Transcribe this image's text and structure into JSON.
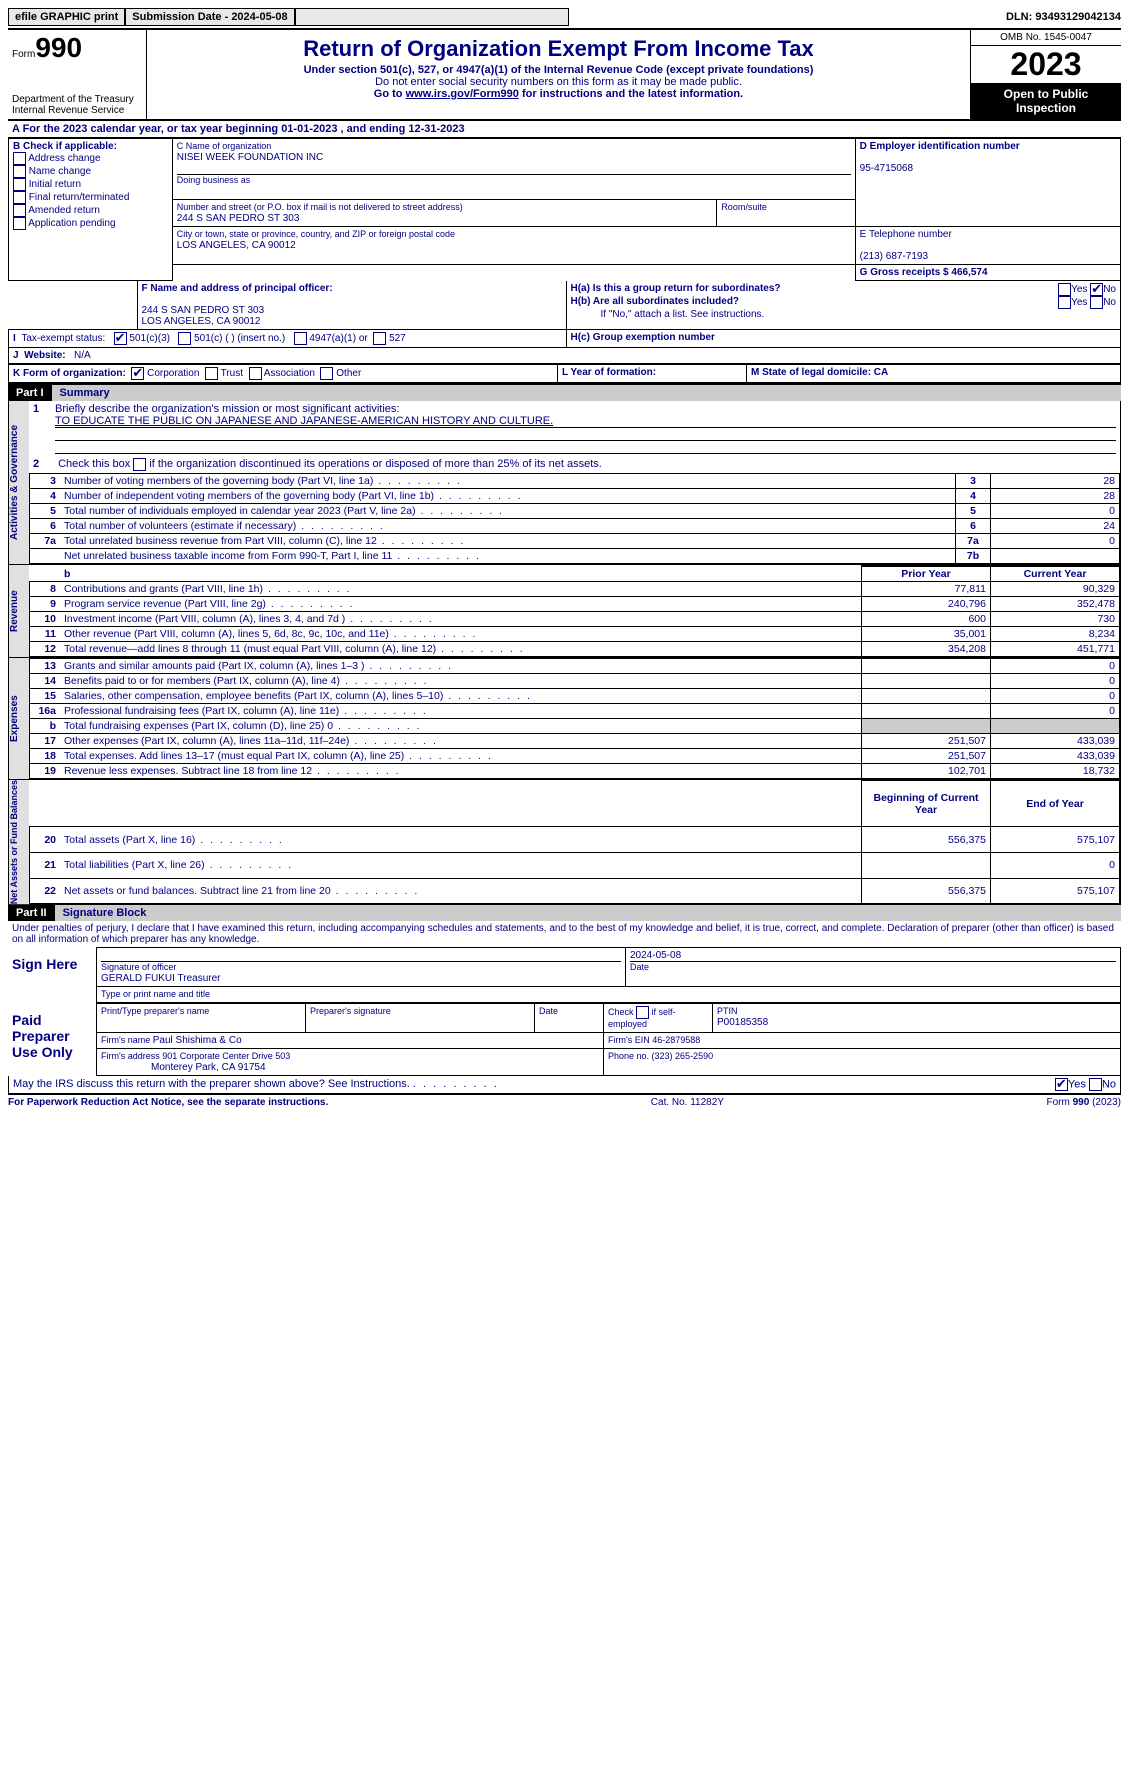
{
  "topbar": {
    "efile_btn": "efile GRAPHIC print",
    "submission_label": "Submission Date - 2024-05-08",
    "dln_label": "DLN: 93493129042134"
  },
  "header": {
    "form_label_small": "Form",
    "form_label_big": "990",
    "dept": "Department of the Treasury Internal Revenue Service",
    "title": "Return of Organization Exempt From Income Tax",
    "sub1": "Under section 501(c), 527, or 4947(a)(1) of the Internal Revenue Code (except private foundations)",
    "sub2": "Do not enter social security numbers on this form as it may be made public.",
    "sub3_pre": "Go to ",
    "sub3_link": "www.irs.gov/Form990",
    "sub3_post": " for instructions and the latest information.",
    "omb": "OMB No. 1545-0047",
    "year": "2023",
    "open": "Open to Public Inspection"
  },
  "sectionA": {
    "a_line": "A For the 2023 calendar year, or tax year beginning 01-01-2023   , and ending 12-31-2023",
    "b_label": "B Check if applicable:",
    "b_opts": [
      "Address change",
      "Name change",
      "Initial return",
      "Final return/terminated",
      "Amended return",
      "Application pending"
    ],
    "c_label": "C Name of organization",
    "c_val": "NISEI WEEK FOUNDATION INC",
    "dba_label": "Doing business as",
    "addr_label": "Number and street (or P.O. box if mail is not delivered to street address)",
    "addr_val": "244 S SAN PEDRO ST 303",
    "room_label": "Room/suite",
    "city_label": "City or town, state or province, country, and ZIP or foreign postal code",
    "city_val": "LOS ANGELES, CA  90012",
    "d_label": "D Employer identification number",
    "d_val": "95-4715068",
    "e_label": "E Telephone number",
    "e_val": "(213) 687-7193",
    "g_label": "G Gross receipts $ 466,574",
    "f_label": "F  Name and address of principal officer:",
    "f_addr1": "244 S SAN PEDRO ST 303",
    "f_addr2": "LOS ANGELES, CA  90012",
    "ha_label": "H(a)  Is this a group return for subordinates?",
    "hb_label": "H(b)  Are all subordinates included?",
    "hb_note": "If \"No,\" attach a list. See instructions.",
    "hc_label": "H(c)  Group exemption number ",
    "yes": "Yes",
    "no": "No",
    "i_label": "Tax-exempt status:",
    "i_501c3": "501(c)(3)",
    "i_501c": "501(c) (  ) (insert no.)",
    "i_4947": "4947(a)(1) or",
    "i_527": "527",
    "j_label": "Website: ",
    "j_val": "N/A",
    "k_label": "K Form of organization:",
    "k_corp": "Corporation",
    "k_trust": "Trust",
    "k_assoc": "Association",
    "k_other": "Other",
    "l_label": "L Year of formation:",
    "m_label": "M State of legal domicile: CA"
  },
  "part1": {
    "header": "Part I",
    "title": "Summary",
    "side_gov": "Activities & Governance",
    "side_rev": "Revenue",
    "side_exp": "Expenses",
    "side_net": "Net Assets or Fund Balances",
    "l1_label": "Briefly describe the organization's mission or most significant activities:",
    "l1_val": "TO EDUCATE THE PUBLIC ON JAPANESE AND JAPANESE-AMERICAN HISTORY AND CULTURE.",
    "l2": "Check this box       if the organization discontinued its operations or disposed of more than 25% of its net assets.",
    "rows_gov": [
      {
        "n": "3",
        "d": "Number of voting members of the governing body (Part VI, line 1a)",
        "b": "3",
        "v": "28"
      },
      {
        "n": "4",
        "d": "Number of independent voting members of the governing body (Part VI, line 1b)",
        "b": "4",
        "v": "28"
      },
      {
        "n": "5",
        "d": "Total number of individuals employed in calendar year 2023 (Part V, line 2a)",
        "b": "5",
        "v": "0"
      },
      {
        "n": "6",
        "d": "Total number of volunteers (estimate if necessary)",
        "b": "6",
        "v": "24"
      },
      {
        "n": "7a",
        "d": "Total unrelated business revenue from Part VIII, column (C), line 12",
        "b": "7a",
        "v": "0"
      },
      {
        "n": "",
        "d": "Net unrelated business taxable income from Form 990-T, Part I, line 11",
        "b": "7b",
        "v": ""
      }
    ],
    "col_prior": "Prior Year",
    "col_curr": "Current Year",
    "rows_rev": [
      {
        "n": "8",
        "d": "Contributions and grants (Part VIII, line 1h)",
        "p": "77,811",
        "c": "90,329"
      },
      {
        "n": "9",
        "d": "Program service revenue (Part VIII, line 2g)",
        "p": "240,796",
        "c": "352,478"
      },
      {
        "n": "10",
        "d": "Investment income (Part VIII, column (A), lines 3, 4, and 7d )",
        "p": "600",
        "c": "730"
      },
      {
        "n": "11",
        "d": "Other revenue (Part VIII, column (A), lines 5, 6d, 8c, 9c, 10c, and 11e)",
        "p": "35,001",
        "c": "8,234"
      },
      {
        "n": "12",
        "d": "Total revenue—add lines 8 through 11 (must equal Part VIII, column (A), line 12)",
        "p": "354,208",
        "c": "451,771"
      }
    ],
    "rows_exp": [
      {
        "n": "13",
        "d": "Grants and similar amounts paid (Part IX, column (A), lines 1–3 )",
        "p": "",
        "c": "0"
      },
      {
        "n": "14",
        "d": "Benefits paid to or for members (Part IX, column (A), line 4)",
        "p": "",
        "c": "0"
      },
      {
        "n": "15",
        "d": "Salaries, other compensation, employee benefits (Part IX, column (A), lines 5–10)",
        "p": "",
        "c": "0"
      },
      {
        "n": "16a",
        "d": "Professional fundraising fees (Part IX, column (A), line 11e)",
        "p": "",
        "c": "0"
      },
      {
        "n": "b",
        "d": "Total fundraising expenses (Part IX, column (D), line 25) 0",
        "p": "shaded",
        "c": "shaded"
      },
      {
        "n": "17",
        "d": "Other expenses (Part IX, column (A), lines 11a–11d, 11f–24e)",
        "p": "251,507",
        "c": "433,039"
      },
      {
        "n": "18",
        "d": "Total expenses. Add lines 13–17 (must equal Part IX, column (A), line 25)",
        "p": "251,507",
        "c": "433,039"
      },
      {
        "n": "19",
        "d": "Revenue less expenses. Subtract line 18 from line 12",
        "p": "102,701",
        "c": "18,732"
      }
    ],
    "col_begin": "Beginning of Current Year",
    "col_end": "End of Year",
    "rows_net": [
      {
        "n": "20",
        "d": "Total assets (Part X, line 16)",
        "p": "556,375",
        "c": "575,107"
      },
      {
        "n": "21",
        "d": "Total liabilities (Part X, line 26)",
        "p": "",
        "c": "0"
      },
      {
        "n": "22",
        "d": "Net assets or fund balances. Subtract line 21 from line 20",
        "p": "556,375",
        "c": "575,107"
      }
    ]
  },
  "part2": {
    "header": "Part II",
    "title": "Signature Block",
    "decl": "Under penalties of perjury, I declare that I have examined this return, including accompanying schedules and statements, and to the best of my knowledge and belief, it is true, correct, and complete. Declaration of preparer (other than officer) is based on all information of which preparer has any knowledge.",
    "sign_here": "Sign Here",
    "sig_officer": "Signature of officer",
    "sig_name": "GERALD FUKUI Treasurer",
    "sig_type": "Type or print name and title",
    "sig_date_label": "Date",
    "sig_date": "2024-05-08",
    "paid": "Paid Preparer Use Only",
    "prep_name_label": "Print/Type preparer's name",
    "prep_sig_label": "Preparer's signature",
    "prep_date_label": "Date",
    "prep_check": "Check        if self-employed",
    "ptin_label": "PTIN",
    "ptin": "P00185358",
    "firm_name_label": "Firm's name   ",
    "firm_name": "Paul Shishima & Co",
    "firm_ein_label": "Firm's EIN  46-2879588",
    "firm_addr_label": "Firm's address 901 Corporate Center Drive 503",
    "firm_addr2": "Monterey Park, CA  91754",
    "firm_phone": "Phone no. (323) 265-2590",
    "discuss": "May the IRS discuss this return with the preparer shown above? See Instructions."
  },
  "footer": {
    "left": "For Paperwork Reduction Act Notice, see the separate instructions.",
    "mid": "Cat. No. 11282Y",
    "right_pre": "Form ",
    "right_b": "990",
    "right_post": " (2023)"
  }
}
